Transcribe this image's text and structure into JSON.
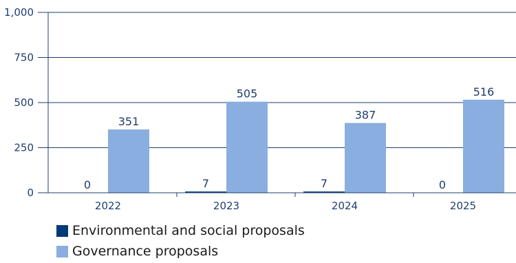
{
  "chart_data": {
    "type": "bar",
    "categories": [
      "2022",
      "2023",
      "2024",
      "2025"
    ],
    "series": [
      {
        "name": "Environmental and social proposals",
        "values": [
          0,
          7,
          7,
          0
        ],
        "color": "#003a78"
      },
      {
        "name": "Governance proposals",
        "values": [
          351,
          505,
          387,
          516
        ],
        "color": "#8aaee0"
      }
    ],
    "y_ticks": [
      "0",
      "250",
      "500",
      "750",
      "1,000"
    ],
    "ylim": [
      0,
      1000
    ],
    "grid": true,
    "legend_position": "bottom-left"
  }
}
